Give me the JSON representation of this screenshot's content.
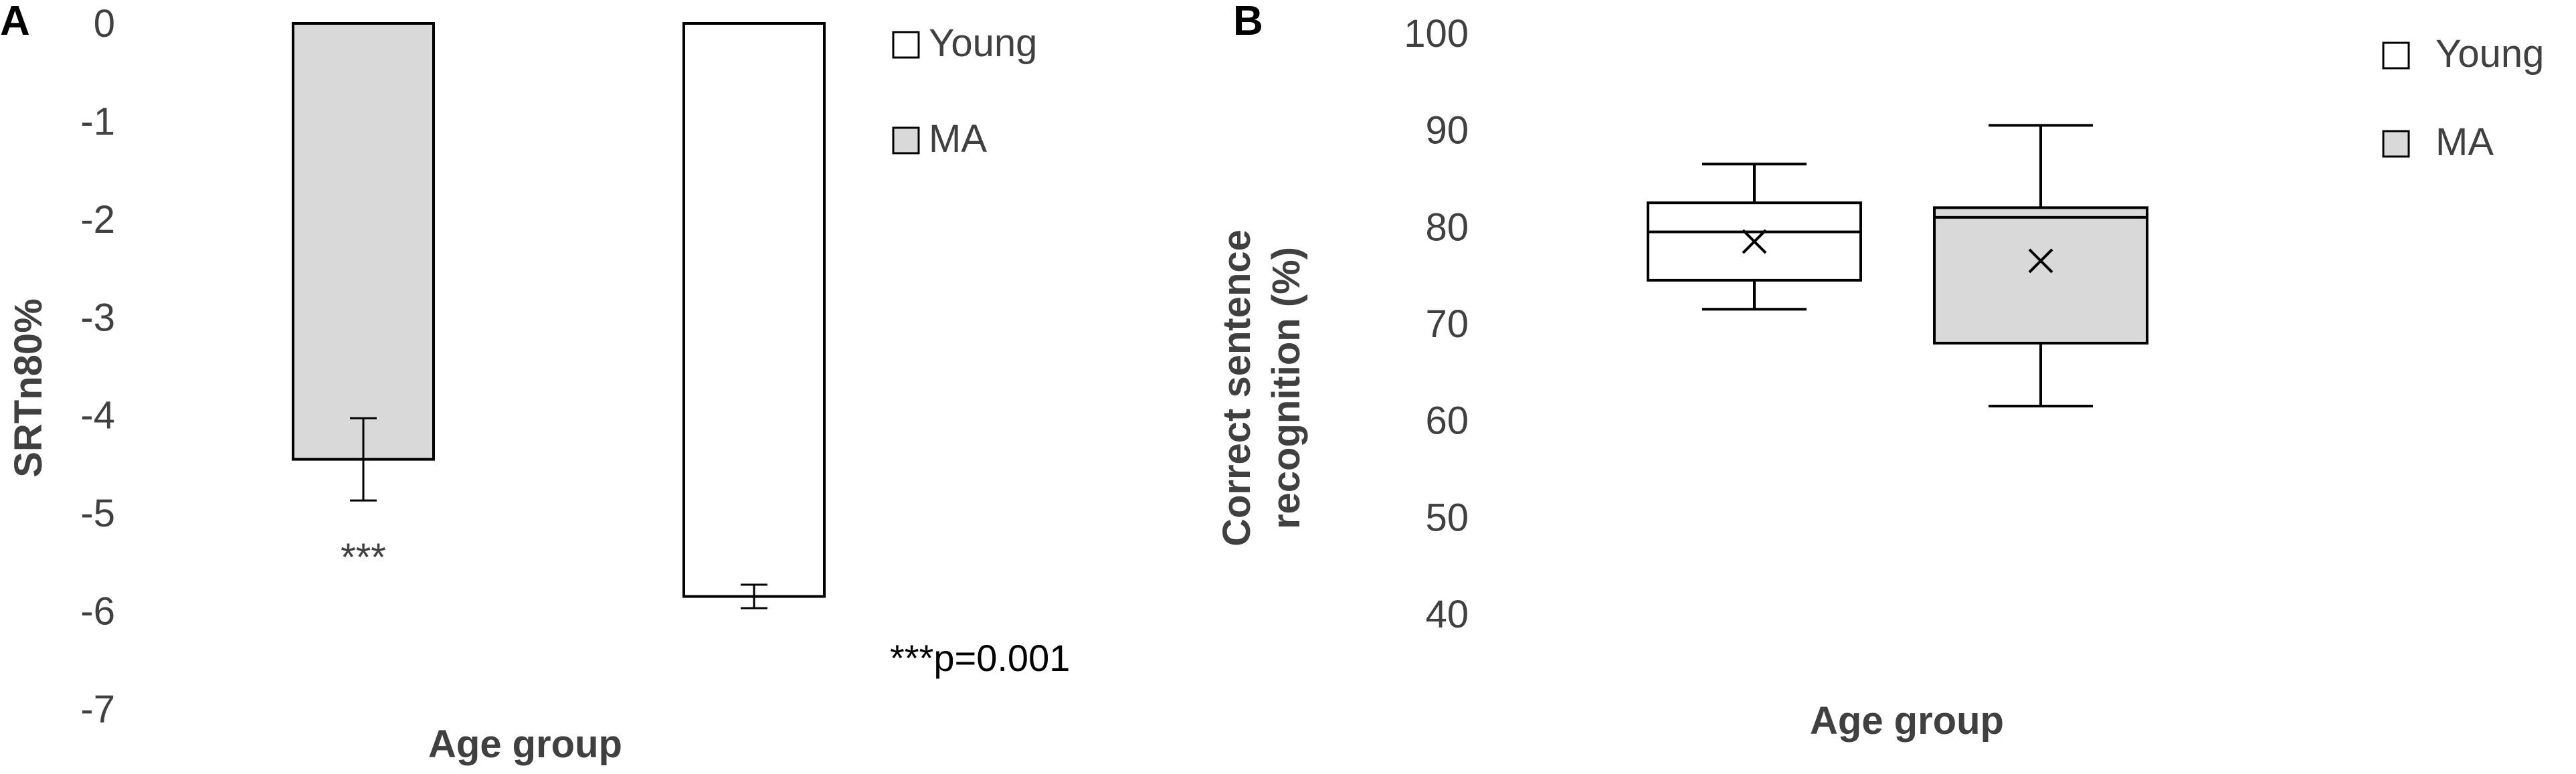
{
  "chart_data": [
    {
      "panel": "A",
      "type": "bar",
      "categories": [
        "MA",
        "Young"
      ],
      "values": [
        -4.45,
        -5.85
      ],
      "error": [
        0.42,
        0.12
      ],
      "colors": [
        "#d9d9d9",
        "#ffffff"
      ],
      "ylabel": "SRTn80%",
      "xlabel": "Age group",
      "ylim": [
        -7,
        0
      ],
      "yticks": [
        "0",
        "-1",
        "-2",
        "-3",
        "-4",
        "-5",
        "-6",
        "-7"
      ],
      "annotation": "***",
      "legend": [
        {
          "label": "Young",
          "color": "#ffffff"
        },
        {
          "label": "MA",
          "color": "#d9d9d9"
        }
      ],
      "note": "***p=0.001"
    },
    {
      "panel": "B",
      "type": "box",
      "categories": [
        "Young",
        "MA"
      ],
      "boxes": [
        {
          "name": "Young",
          "min": 71.5,
          "q1": 74.5,
          "median": 79.5,
          "q3": 82.5,
          "max": 86.5,
          "mean": 78.5,
          "color": "#ffffff"
        },
        {
          "name": "MA",
          "min": 61.5,
          "q1": 68,
          "median": 81,
          "q3": 82,
          "max": 90.5,
          "mean": 76.5,
          "color": "#d9d9d9"
        }
      ],
      "ylabel_lines": [
        "Correct sentence",
        "recognition (%)"
      ],
      "xlabel": "Age group",
      "ylim": [
        40,
        100
      ],
      "yticks": [
        "100",
        "90",
        "80",
        "70",
        "60",
        "50",
        "40"
      ],
      "legend": [
        {
          "label": "Young",
          "color": "#ffffff"
        },
        {
          "label": "MA",
          "color": "#d9d9d9"
        }
      ]
    }
  ]
}
